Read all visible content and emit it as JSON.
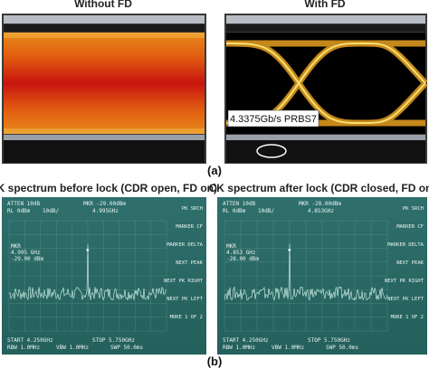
{
  "part_a": {
    "label": "(a)",
    "panels": [
      {
        "title": "Without FD"
      },
      {
        "title": "With FD",
        "annotation": "4.3375Gb/s PRBS7"
      }
    ]
  },
  "part_b": {
    "label": "(b)",
    "panels": [
      {
        "title": "CK spectrum before lock (CDR open, FD on)",
        "atten": "ATTEN 10dB",
        "marker_readout": "MKR -29.00dBm",
        "ref_level": "RL 0dBm",
        "scale": "10dB/",
        "marker_freq": "4.995GHz",
        "marker_label": [
          "MKR",
          "4.995 GHz",
          "-29.00 dBm"
        ],
        "start": "START 4.250GHz",
        "stop": "STOP 5.750GHz",
        "rbw": "RBW 1.0MHz",
        "vbw": "VBW 1.0MHz",
        "swp": "SWP 50.0ms",
        "softkeys": [
          "PK SRCH",
          "MARKER CF",
          "MARKER DELTA",
          "NEXT PEAK",
          "NEXT PK RIGHT",
          "NEXT PK LEFT",
          "MORE 1 OF 2"
        ]
      },
      {
        "title": "CK spectrum after lock (CDR closed, FD on)",
        "atten": "ATTEN 10dB",
        "marker_readout": "MKR -28.00dBm",
        "ref_level": "RL 0dBm",
        "scale": "10dB/",
        "marker_freq": "4.853GHz",
        "marker_label": [
          "MKR",
          "4.853 GHz",
          "-28.00 dBm"
        ],
        "start": "START 4.250GHz",
        "stop": "STOP 5.750GHz",
        "rbw": "RBW 1.0MHz",
        "vbw": "VBW 1.0MHz",
        "swp": "SWP 50.0ms",
        "softkeys": [
          "PK SRCH",
          "MARKER CF",
          "MARKER DELTA",
          "NEXT PEAK",
          "NEXT PK RIGHT",
          "NEXT PK LEFT",
          "MORE 1 OF 2"
        ]
      }
    ]
  }
}
